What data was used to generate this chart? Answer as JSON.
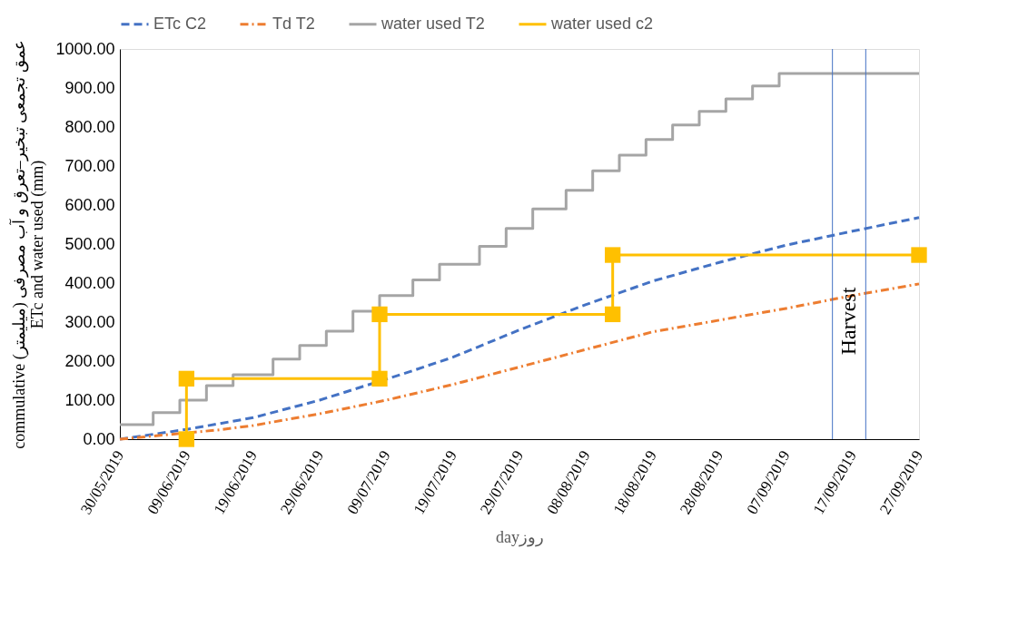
{
  "chart_data": {
    "type": "line",
    "xlabel": "dayروز",
    "ylabel": "commulative  عمق تجمعی تبخیر–تعرق و آب مصرفی (میلیمتر)\nETc and water used (mm)",
    "ylim": [
      0,
      1000
    ],
    "yticks": [
      {
        "value": 0,
        "label": "0.00"
      },
      {
        "value": 100,
        "label": "100.00"
      },
      {
        "value": 200,
        "label": "200.00"
      },
      {
        "value": 300,
        "label": "300.00"
      },
      {
        "value": 400,
        "label": "400.00"
      },
      {
        "value": 500,
        "label": "500.00"
      },
      {
        "value": 600,
        "label": "600.00"
      },
      {
        "value": 700,
        "label": "700.00"
      },
      {
        "value": 800,
        "label": "800.00"
      },
      {
        "value": 900,
        "label": "900.00"
      },
      {
        "value": 1000,
        "label": "1000.00"
      }
    ],
    "xlim": [
      "2019-05-30",
      "2019-09-27"
    ],
    "xticks": [
      {
        "value": "2019-05-30",
        "label": "30/05/2019"
      },
      {
        "value": "2019-06-09",
        "label": "09/06/2019"
      },
      {
        "value": "2019-06-19",
        "label": "19/06/2019"
      },
      {
        "value": "2019-06-29",
        "label": "29/06/2019"
      },
      {
        "value": "2019-07-09",
        "label": "09/07/2019"
      },
      {
        "value": "2019-07-19",
        "label": "19/07/2019"
      },
      {
        "value": "2019-07-29",
        "label": "29/07/2019"
      },
      {
        "value": "2019-08-08",
        "label": "08/08/2019"
      },
      {
        "value": "2019-08-18",
        "label": "18/08/2019"
      },
      {
        "value": "2019-08-28",
        "label": "28/08/2019"
      },
      {
        "value": "2019-09-07",
        "label": "07/09/2019"
      },
      {
        "value": "2019-09-17",
        "label": "17/09/2019"
      },
      {
        "value": "2019-09-27",
        "label": "27/09/2019"
      }
    ],
    "grid": false,
    "legend": "top",
    "series": [
      {
        "name": "ETc C2",
        "type": "line",
        "color": "#4472c4",
        "line_style": "dashed",
        "x": [
          "2019-05-30",
          "2019-06-09",
          "2019-06-19",
          "2019-06-29",
          "2019-07-12",
          "2019-07-19",
          "2019-07-29",
          "2019-08-08",
          "2019-08-18",
          "2019-08-28",
          "2019-09-07",
          "2019-09-17",
          "2019-09-27"
        ],
        "values": [
          0,
          25,
          55,
          100,
          170,
          210,
          280,
          345,
          405,
          453,
          497,
          533,
          568
        ]
      },
      {
        "name": "Td T2",
        "type": "line",
        "color": "#ed7d31",
        "line_style": "dashdot",
        "x": [
          "2019-05-30",
          "2019-06-14",
          "2019-06-19",
          "2019-06-29",
          "2019-07-09",
          "2019-07-19",
          "2019-07-29",
          "2019-08-08",
          "2019-08-18",
          "2019-08-28",
          "2019-09-07",
          "2019-09-17",
          "2019-09-27"
        ],
        "values": [
          0,
          24,
          35,
          65,
          100,
          140,
          185,
          230,
          275,
          305,
          335,
          368,
          398
        ]
      },
      {
        "name": "water used T2",
        "type": "step",
        "color": "#a5a5a5",
        "line_style": "solid",
        "x": [
          "2019-05-30",
          "2019-06-04",
          "2019-06-08",
          "2019-06-12",
          "2019-06-16",
          "2019-06-22",
          "2019-06-26",
          "2019-06-30",
          "2019-07-04",
          "2019-07-08",
          "2019-07-13",
          "2019-07-17",
          "2019-07-23",
          "2019-07-27",
          "2019-07-31",
          "2019-08-05",
          "2019-08-09",
          "2019-08-13",
          "2019-08-17",
          "2019-08-21",
          "2019-08-25",
          "2019-08-29",
          "2019-09-02",
          "2019-09-06",
          "2019-09-27"
        ],
        "values": [
          37,
          68,
          100,
          137,
          165,
          205,
          240,
          277,
          328,
          368,
          408,
          448,
          494,
          540,
          590,
          638,
          688,
          728,
          768,
          805,
          840,
          872,
          905,
          937,
          937
        ]
      },
      {
        "name": "water used c2",
        "type": "line",
        "color": "#ffc000",
        "line_style": "solid",
        "marker": "square",
        "x": [
          "2019-06-09",
          "2019-06-09",
          "2019-07-08",
          "2019-07-08",
          "2019-08-12",
          "2019-08-12",
          "2019-09-27"
        ],
        "values": [
          0,
          155,
          155,
          320,
          320,
          472,
          472
        ]
      }
    ],
    "ref_lines": [
      {
        "axis": "x",
        "value": "2019-09-14",
        "label": null,
        "color": "#4472c4"
      },
      {
        "axis": "x",
        "value": "2019-09-19",
        "label": null,
        "color": "#4472c4"
      }
    ],
    "annotations": [
      "Harvest"
    ]
  }
}
